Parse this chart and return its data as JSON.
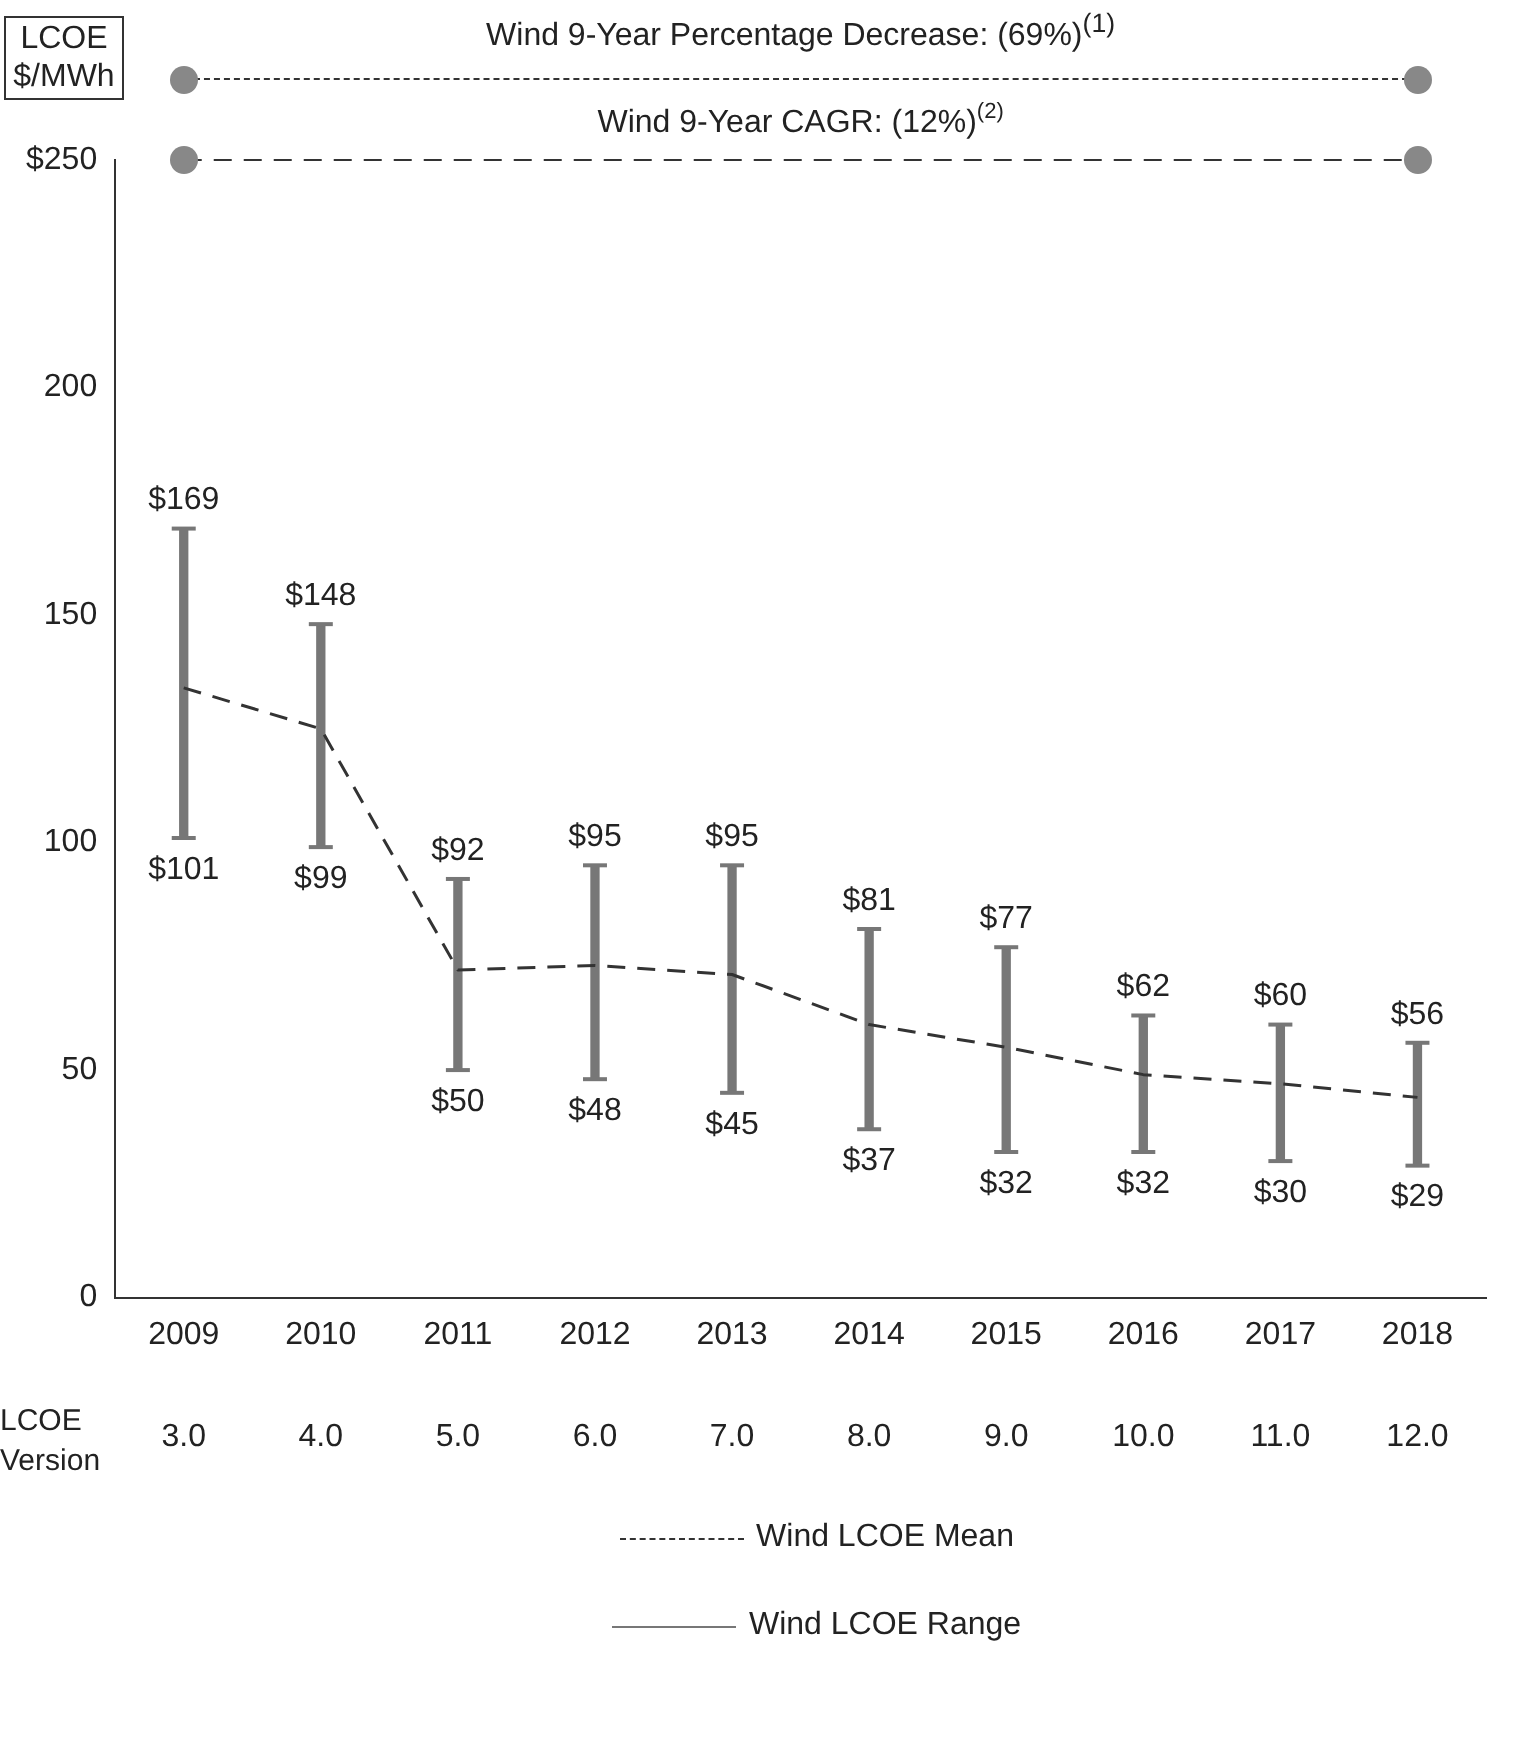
{
  "chart_data": {
    "type": "bar",
    "ylabel": "LCOE $/MWh",
    "categories": [
      "2009",
      "2010",
      "2011",
      "2012",
      "2013",
      "2014",
      "2015",
      "2016",
      "2017",
      "2018"
    ],
    "series": [
      {
        "name": "Wind LCOE Mean",
        "type": "line",
        "line_style": "dashed",
        "color": "#333333",
        "values": [
          134,
          125,
          72,
          73,
          71,
          60,
          55,
          49,
          47,
          44
        ]
      },
      {
        "name": "Wind LCOE Range",
        "color": "#777777",
        "base": [
          101,
          99,
          50,
          48,
          45,
          37,
          32,
          32,
          30,
          29
        ],
        "values": [
          68,
          49,
          42,
          47,
          50,
          44,
          45,
          30,
          30,
          27
        ]
      }
    ],
    "ylim": [
      0,
      250
    ],
    "yticks": [
      0,
      50,
      100,
      150,
      200,
      {
        "value": 250,
        "label": "$250"
      }
    ],
    "grid": false,
    "legend": "bottom",
    "marker": "none",
    "ref_lines": [
      {
        "axis": "y",
        "value": 250,
        "label": "Wind 9-Year CAGR: (12%)$^{(2)}$",
        "line_style": "dashed"
      }
    ],
    "annotations": [
      "Wind 9-Year Percentage Decrease: (69%)$^{(1)}$",
      "LCOE Version",
      {
        "text": "$169",
        "x": "2009",
        "y": 169
      },
      {
        "text": "$101",
        "x": "2009",
        "y": 101
      },
      {
        "text": "$148",
        "x": "2010",
        "y": 148
      },
      {
        "text": "$99",
        "x": "2010",
        "y": 99
      },
      {
        "text": "$92",
        "x": "2011",
        "y": 92
      },
      {
        "text": "$50",
        "x": "2011",
        "y": 50
      },
      {
        "text": "$95",
        "x": "2012",
        "y": 95
      },
      {
        "text": "$48",
        "x": "2012",
        "y": 48
      },
      {
        "text": "$95",
        "x": "2013",
        "y": 95
      },
      {
        "text": "$45",
        "x": "2013",
        "y": 45
      },
      {
        "text": "$81",
        "x": "2014",
        "y": 81
      },
      {
        "text": "$37",
        "x": "2014",
        "y": 37
      },
      {
        "text": "$77",
        "x": "2015",
        "y": 77
      },
      {
        "text": "$32",
        "x": "2015",
        "y": 32
      },
      {
        "text": "$62",
        "x": "2016",
        "y": 62
      },
      {
        "text": "$32",
        "x": "2016",
        "y": 32
      },
      {
        "text": "$60",
        "x": "2017",
        "y": 60
      },
      {
        "text": "$30",
        "x": "2017",
        "y": 30
      },
      {
        "text": "$56",
        "x": "2018",
        "y": 56
      },
      {
        "text": "$29",
        "x": "2018",
        "y": 29
      },
      "3.0",
      "4.0",
      "5.0",
      "6.0",
      "7.0",
      "8.0",
      "9.0",
      "10.0",
      "11.0",
      "12.0"
    ]
  }
}
